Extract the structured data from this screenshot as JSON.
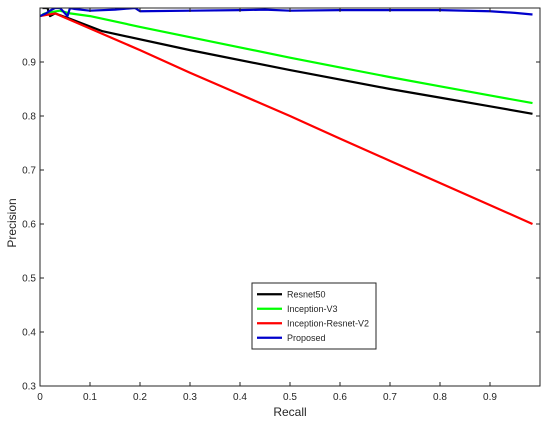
{
  "chart_data": {
    "type": "line",
    "title": "",
    "xlabel": "Recall",
    "ylabel": "Precision",
    "xlim": [
      0,
      1
    ],
    "ylim": [
      0.3,
      1
    ],
    "xticks": [
      0,
      0.1,
      0.2,
      0.3,
      0.4,
      0.5,
      0.6,
      0.7,
      0.8,
      0.9
    ],
    "xtick_labels": [
      "0",
      "0.1",
      "0.2",
      "0.3",
      "0.4",
      "0.5",
      "0.6",
      "0.7",
      "0.8",
      "0.9"
    ],
    "yticks": [
      0.3,
      0.4,
      0.5,
      0.6,
      0.7,
      0.8,
      0.9
    ],
    "ytick_labels": [
      "0.3",
      "0.4",
      "0.5",
      "0.6",
      "0.7",
      "0.8",
      "0.9"
    ],
    "grid": false,
    "legend_position": "center-bottom",
    "series": [
      {
        "name": "Resnet50",
        "color": "#000000",
        "x": [
          0.005,
          0.015,
          0.02,
          0.03,
          0.06,
          0.125,
          0.3,
          0.5,
          0.7,
          0.8,
          0.9,
          0.985
        ],
        "y": [
          1.0,
          1.0,
          0.985,
          0.99,
          0.98,
          0.957,
          0.922,
          0.885,
          0.85,
          0.834,
          0.818,
          0.804
        ]
      },
      {
        "name": "Inception-V3",
        "color": "#00ff00",
        "x": [
          0.005,
          0.01,
          0.02,
          0.04,
          0.06,
          0.1,
          0.2,
          0.3,
          0.4,
          0.5,
          0.6,
          0.7,
          0.8,
          0.9,
          0.985
        ],
        "y": [
          0.988,
          0.99,
          0.992,
          0.995,
          0.99,
          0.985,
          0.965,
          0.946,
          0.927,
          0.908,
          0.89,
          0.872,
          0.855,
          0.838,
          0.824
        ]
      },
      {
        "name": "Inception-Resnet-V2",
        "color": "#ff0000",
        "x": [
          0.0,
          0.03,
          0.1,
          0.2,
          0.3,
          0.4,
          0.5,
          0.6,
          0.7,
          0.8,
          0.9,
          0.985
        ],
        "y": [
          0.985,
          0.99,
          0.962,
          0.922,
          0.88,
          0.84,
          0.8,
          0.758,
          0.717,
          0.676,
          0.635,
          0.6
        ]
      },
      {
        "name": "Proposed",
        "color": "#0000cc",
        "x": [
          0.0,
          0.012,
          0.02,
          0.03,
          0.04,
          0.05,
          0.055,
          0.06,
          0.07,
          0.1,
          0.15,
          0.19,
          0.2,
          0.3,
          0.4,
          0.45,
          0.5,
          0.6,
          0.7,
          0.8,
          0.9,
          0.95,
          0.985
        ],
        "y": [
          0.985,
          0.99,
          0.995,
          1.0,
          1.0,
          0.99,
          0.985,
          1.0,
          0.998,
          0.995,
          0.997,
          1.0,
          0.994,
          0.995,
          0.996,
          0.997,
          0.995,
          0.996,
          0.996,
          0.996,
          0.994,
          0.991,
          0.988
        ]
      }
    ]
  }
}
